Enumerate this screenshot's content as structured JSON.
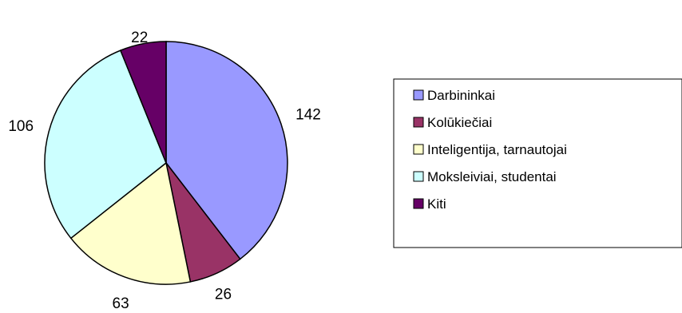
{
  "chart_data": {
    "type": "pie",
    "title": "",
    "categories": [
      "Darbininkai",
      "Kolūkiečiai",
      "Inteligentija, tarnautojai",
      "Moksleiviai, studentai",
      "Kiti"
    ],
    "values": [
      142,
      26,
      63,
      106,
      22
    ],
    "data_labels": [
      "142",
      "26",
      "63",
      "106",
      "22"
    ],
    "colors": [
      "#9999ff",
      "#993366",
      "#ffffcc",
      "#ccffff",
      "#660066"
    ],
    "start_angle": "12 o'clock",
    "direction": "clockwise",
    "legend": "right"
  }
}
